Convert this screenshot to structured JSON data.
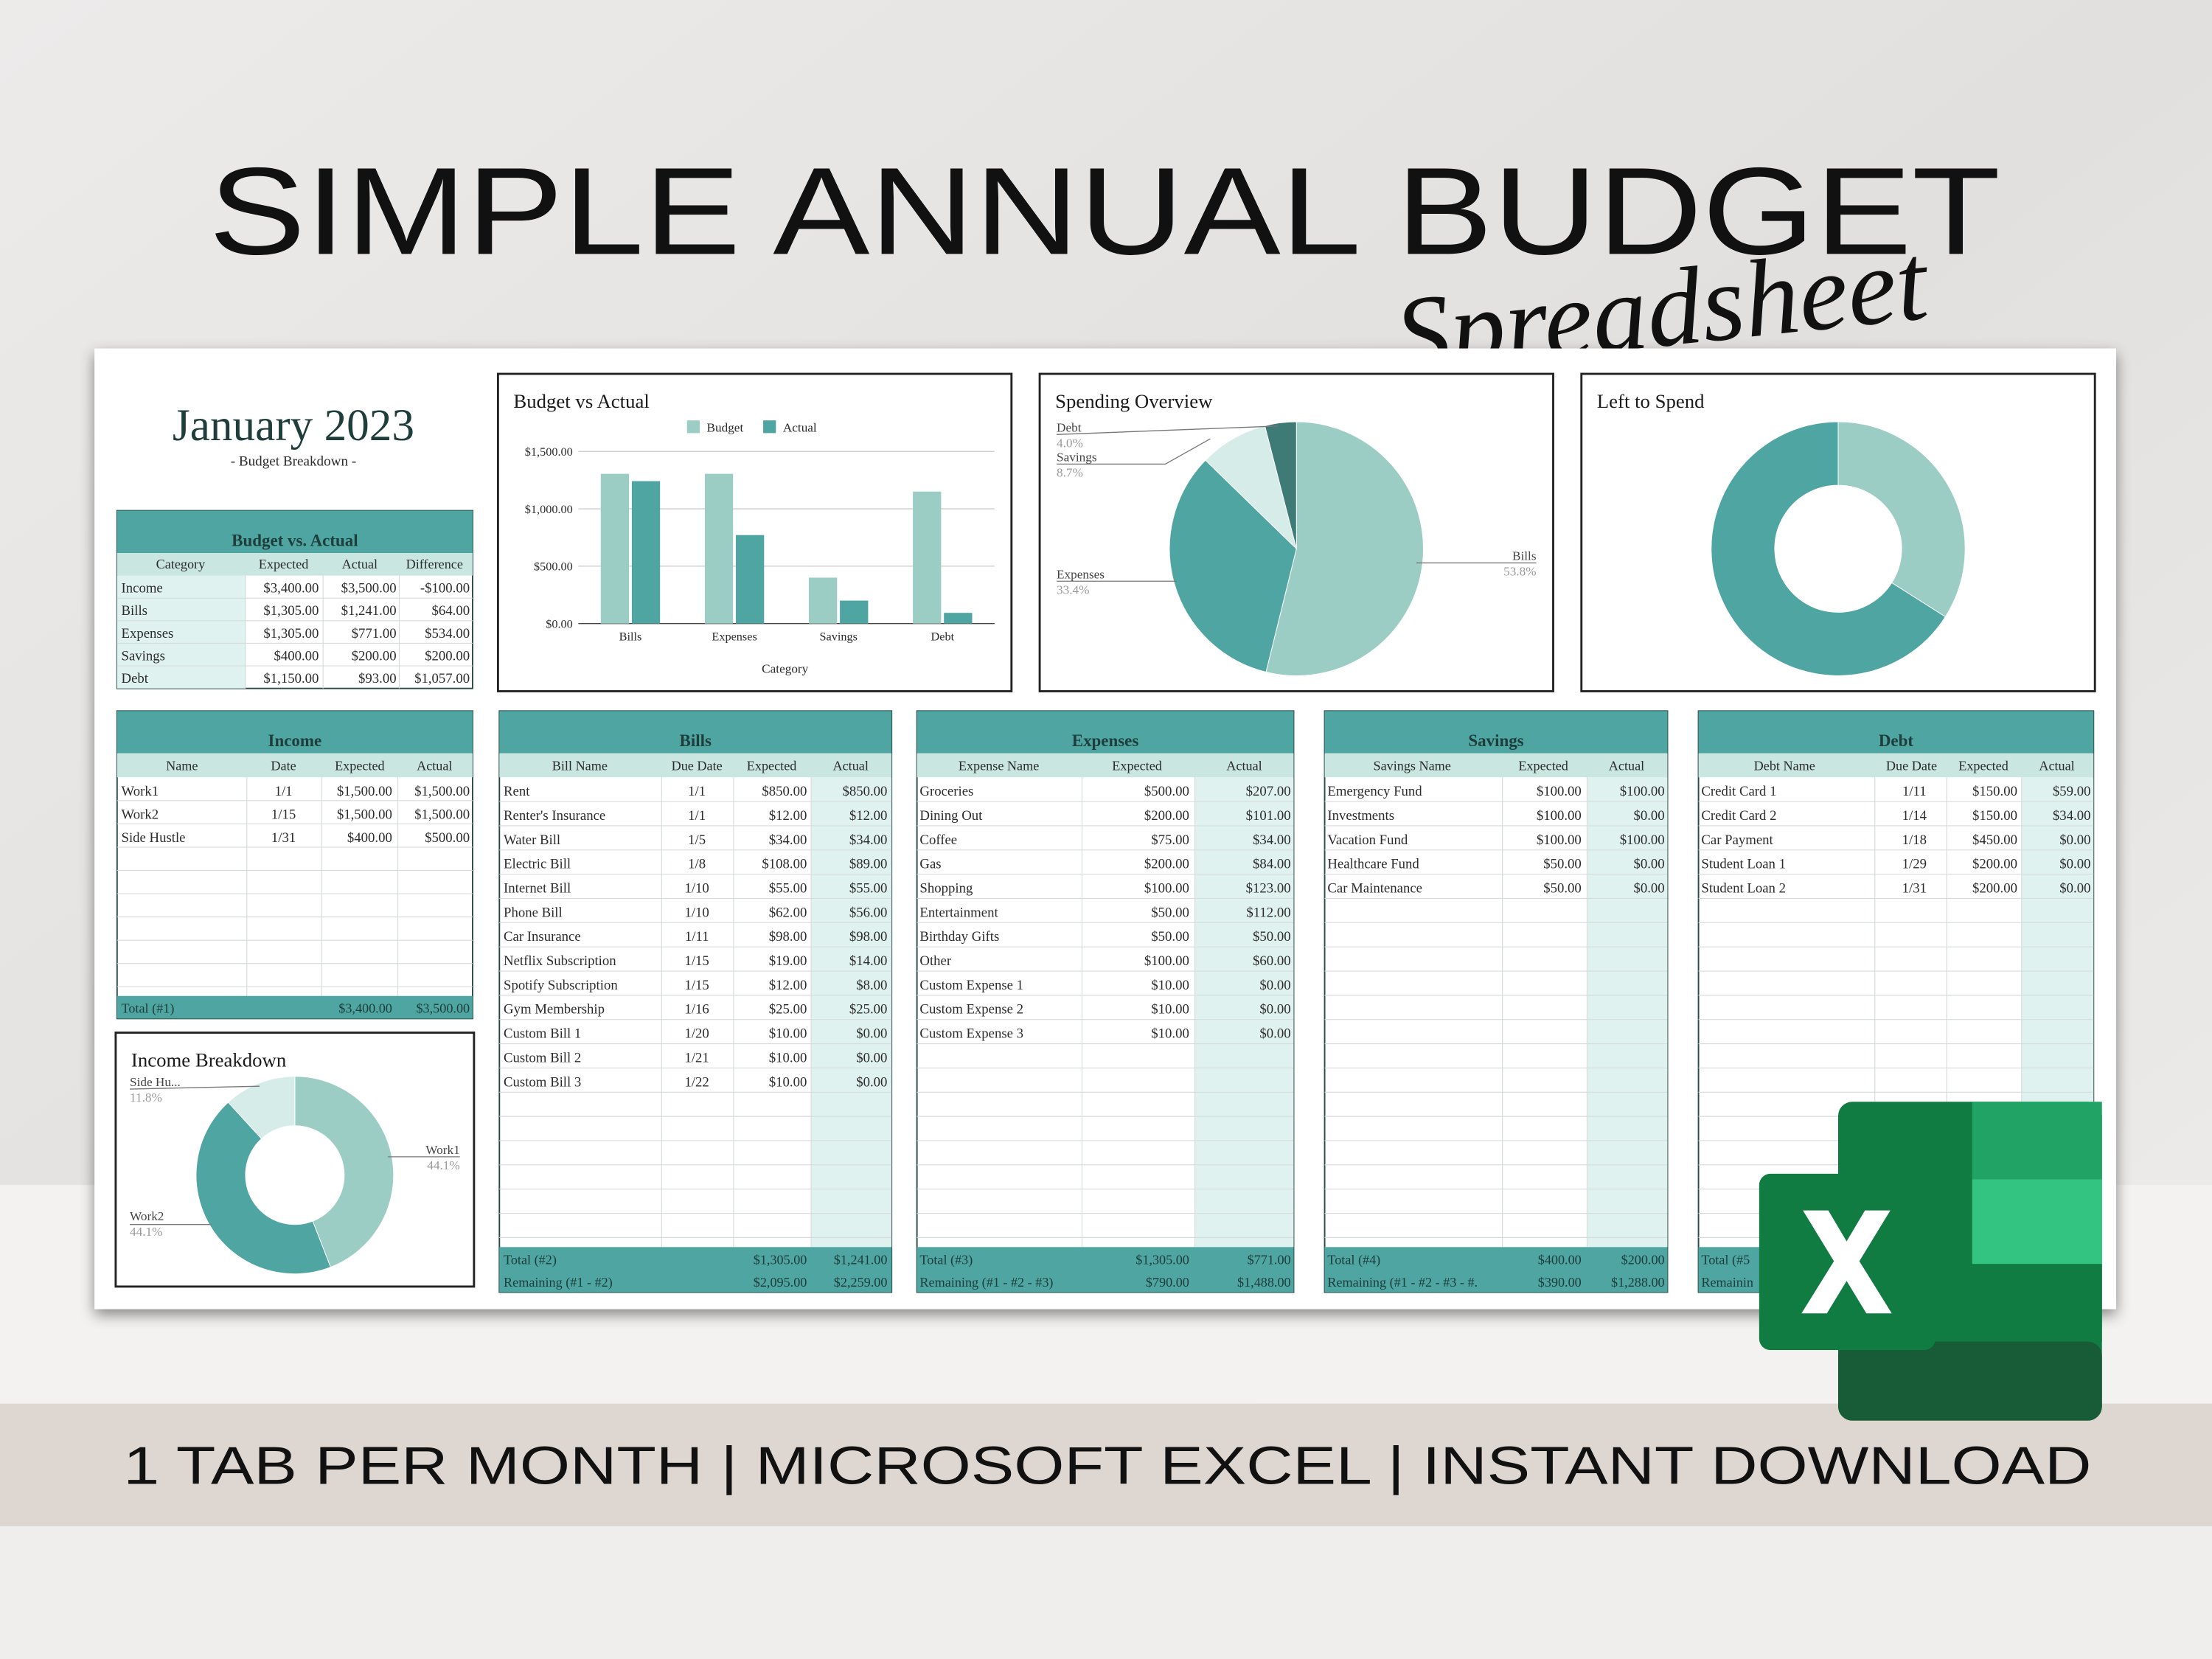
{
  "header": {
    "title": "SIMPLE ANNUAL BUDGET",
    "subtitle": "Spreadsheet",
    "footer": "1 TAB PER MONTH | MICROSOFT EXCEL | INSTANT DOWNLOAD"
  },
  "sheet": {
    "month": "January 2023",
    "caption": "- Budget Breakdown -"
  },
  "tables": [
    {
      "title": "Budget vs. Actual",
      "columns": [
        "Category",
        "Expected",
        "Actual",
        "Difference"
      ],
      "rows": [
        [
          "Income",
          "$3,400.00",
          "$3,500.00",
          "-$100.00"
        ],
        [
          "Bills",
          "$1,305.00",
          "$1,241.00",
          "$64.00"
        ],
        [
          "Expenses",
          "$1,305.00",
          "$771.00",
          "$534.00"
        ],
        [
          "Savings",
          "$400.00",
          "$200.00",
          "$200.00"
        ],
        [
          "Debt",
          "$1,150.00",
          "$93.00",
          "$1,057.00"
        ]
      ],
      "totals": []
    },
    {
      "title": "Income",
      "columns": [
        "Name",
        "Date",
        "Expected",
        "Actual"
      ],
      "rows": [
        [
          "Work1",
          "1/1",
          "$1,500.00",
          "$1,500.00"
        ],
        [
          "Work2",
          "1/15",
          "$1,500.00",
          "$1,500.00"
        ],
        [
          "Side Hustle",
          "1/31",
          "$400.00",
          "$500.00"
        ]
      ],
      "totals": [
        {
          "label": "Total (#1)",
          "values": [
            "$3,400.00",
            "$3,500.00"
          ]
        }
      ]
    },
    {
      "title": "Bills",
      "columns": [
        "Bill Name",
        "Due Date",
        "Expected",
        "Actual"
      ],
      "rows": [
        [
          "Rent",
          "1/1",
          "$850.00",
          "$850.00"
        ],
        [
          "Renter's Insurance",
          "1/1",
          "$12.00",
          "$12.00"
        ],
        [
          "Water Bill",
          "1/5",
          "$34.00",
          "$34.00"
        ],
        [
          "Electric Bill",
          "1/8",
          "$108.00",
          "$89.00"
        ],
        [
          "Internet Bill",
          "1/10",
          "$55.00",
          "$55.00"
        ],
        [
          "Phone Bill",
          "1/10",
          "$62.00",
          "$56.00"
        ],
        [
          "Car Insurance",
          "1/11",
          "$98.00",
          "$98.00"
        ],
        [
          "Netflix Subscription",
          "1/15",
          "$19.00",
          "$14.00"
        ],
        [
          "Spotify Subscription",
          "1/15",
          "$12.00",
          "$8.00"
        ],
        [
          "Gym Membership",
          "1/16",
          "$25.00",
          "$25.00"
        ],
        [
          "Custom Bill 1",
          "1/20",
          "$10.00",
          "$0.00"
        ],
        [
          "Custom Bill 2",
          "1/21",
          "$10.00",
          "$0.00"
        ],
        [
          "Custom Bill 3",
          "1/22",
          "$10.00",
          "$0.00"
        ]
      ],
      "totals": [
        {
          "label": "Total (#2)",
          "values": [
            "$1,305.00",
            "$1,241.00"
          ]
        },
        {
          "label": "Remaining (#1 - #2)",
          "values": [
            "$2,095.00",
            "$2,259.00"
          ]
        }
      ]
    },
    {
      "title": "Expenses",
      "columns": [
        "Expense Name",
        "Expected",
        "Actual"
      ],
      "rows": [
        [
          "Groceries",
          "$500.00",
          "$207.00"
        ],
        [
          "Dining Out",
          "$200.00",
          "$101.00"
        ],
        [
          "Coffee",
          "$75.00",
          "$34.00"
        ],
        [
          "Gas",
          "$200.00",
          "$84.00"
        ],
        [
          "Shopping",
          "$100.00",
          "$123.00"
        ],
        [
          "Entertainment",
          "$50.00",
          "$112.00"
        ],
        [
          "Birthday Gifts",
          "$50.00",
          "$50.00"
        ],
        [
          "Other",
          "$100.00",
          "$60.00"
        ],
        [
          "Custom Expense 1",
          "$10.00",
          "$0.00"
        ],
        [
          "Custom Expense 2",
          "$10.00",
          "$0.00"
        ],
        [
          "Custom Expense 3",
          "$10.00",
          "$0.00"
        ]
      ],
      "totals": [
        {
          "label": "Total (#3)",
          "values": [
            "$1,305.00",
            "$771.00"
          ]
        },
        {
          "label": "Remaining (#1 - #2 - #3)",
          "values": [
            "$790.00",
            "$1,488.00"
          ]
        }
      ]
    },
    {
      "title": "Savings",
      "columns": [
        "Savings Name",
        "Expected",
        "Actual"
      ],
      "rows": [
        [
          "Emergency Fund",
          "$100.00",
          "$100.00"
        ],
        [
          "Investments",
          "$100.00",
          "$0.00"
        ],
        [
          "Vacation Fund",
          "$100.00",
          "$100.00"
        ],
        [
          "Healthcare Fund",
          "$50.00",
          "$0.00"
        ],
        [
          "Car Maintenance",
          "$50.00",
          "$0.00"
        ]
      ],
      "totals": [
        {
          "label": "Total (#4)",
          "values": [
            "$400.00",
            "$200.00"
          ]
        },
        {
          "label": "Remaining (#1 - #2 - #3 - #.",
          "values": [
            "$390.00",
            "$1,288.00"
          ]
        }
      ]
    },
    {
      "title": "Debt",
      "columns": [
        "Debt Name",
        "Due Date",
        "Expected",
        "Actual"
      ],
      "rows": [
        [
          "Credit Card 1",
          "1/11",
          "$150.00",
          "$59.00"
        ],
        [
          "Credit Card 2",
          "1/14",
          "$150.00",
          "$34.00"
        ],
        [
          "Car Payment",
          "1/18",
          "$450.00",
          "$0.00"
        ],
        [
          "Student Loan 1",
          "1/29",
          "$200.00",
          "$0.00"
        ],
        [
          "Student Loan 2",
          "1/31",
          "$200.00",
          "$0.00"
        ]
      ],
      "totals": [
        {
          "label": "Total (#5",
          "values": []
        },
        {
          "label": "Remainin",
          "values": []
        }
      ]
    }
  ],
  "chart_data": [
    {
      "type": "bar",
      "title": "Budget vs Actual",
      "x_label": "Category",
      "categories": [
        "Bills",
        "Expenses",
        "Savings",
        "Debt"
      ],
      "series": [
        {
          "name": "Budget",
          "color": "#9ccdc5",
          "values": [
            1305,
            1305,
            400,
            1150
          ]
        },
        {
          "name": "Actual",
          "color": "#4ea5a1",
          "values": [
            1241,
            771,
            200,
            93
          ]
        }
      ],
      "ylim": [
        0,
        1500
      ],
      "yticks": [
        {
          "value": 0,
          "label": "$0.00"
        },
        {
          "value": 500,
          "label": "$500.00"
        },
        {
          "value": 1000,
          "label": "$1,000.00"
        },
        {
          "value": 1500,
          "label": "$1,500.00"
        }
      ],
      "grid": true,
      "legend": "top"
    },
    {
      "type": "pie",
      "title": "Spending Overview",
      "categories": [
        "Bills",
        "Expenses",
        "Savings",
        "Debt"
      ],
      "values": [
        53.8,
        33.4,
        8.7,
        4.0
      ],
      "value_labels": [
        "53.8%",
        "33.4%",
        "8.7%",
        "4.0%"
      ],
      "colors": [
        "#9ccdc5",
        "#4ea5a1",
        "#d5ece9",
        "#3e7a76"
      ]
    },
    {
      "type": "donut",
      "title": "Left to Spend",
      "values": [
        34,
        66
      ],
      "colors": [
        "#9ccdc5",
        "#4ea5a1"
      ]
    },
    {
      "type": "donut",
      "title": "Income Breakdown",
      "categories": [
        "Work1",
        "Work2",
        "Side Hu..."
      ],
      "values": [
        44.1,
        44.1,
        11.8
      ],
      "value_labels": [
        "44.1%",
        "44.1%",
        "11.8%"
      ],
      "colors": [
        "#9ccdc5",
        "#4ea5a1",
        "#d5ece9"
      ]
    }
  ]
}
